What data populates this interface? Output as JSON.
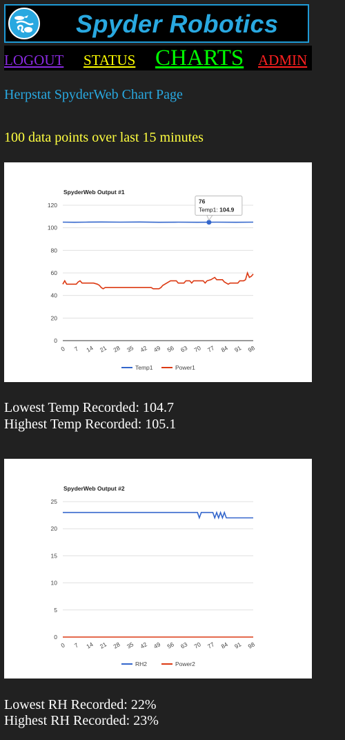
{
  "header": {
    "title": "Spyder Robotics",
    "logo_icon": "reptile-logo-icon"
  },
  "nav": {
    "logout": "LOGOUT",
    "status": "STATUS",
    "charts": "CHARTS",
    "admin": "ADMIN"
  },
  "page": {
    "title": "Herpstat SpyderWeb Chart Page",
    "subtitle": "100 data points over last 15 minutes"
  },
  "stats1": {
    "lowest": "Lowest Temp Recorded: 104.7",
    "highest": "Highest Temp Recorded: 105.1"
  },
  "stats2": {
    "lowest": "Lowest RH Recorded: 22%",
    "highest": "Highest RH Recorded: 23%"
  },
  "chart_data": [
    {
      "type": "line",
      "title": "SpyderWeb Output #1",
      "xlabel": "",
      "ylabel": "",
      "x_ticks": [
        0,
        7,
        14,
        21,
        28,
        35,
        42,
        49,
        56,
        63,
        70,
        77,
        84,
        91,
        98
      ],
      "y_ticks": [
        0,
        20,
        40,
        60,
        80,
        100,
        120
      ],
      "xlim": [
        0,
        99
      ],
      "ylim": [
        0,
        120
      ],
      "grid": true,
      "legend": "bottom",
      "tooltip": {
        "x": 76,
        "series": "Temp1",
        "value": 104.9,
        "x_label": "76",
        "series_label": "Temp1: ",
        "value_label": "104.9"
      },
      "series": [
        {
          "name": "Temp1",
          "color": "#3366cc",
          "points": [
            [
              0,
              105
            ],
            [
              6,
              104.9
            ],
            [
              12,
              105
            ],
            [
              20,
              105.1
            ],
            [
              30,
              105
            ],
            [
              40,
              105.1
            ],
            [
              50,
              104.9
            ],
            [
              60,
              105
            ],
            [
              70,
              104.9
            ],
            [
              80,
              105
            ],
            [
              90,
              104.9
            ],
            [
              99,
              105
            ]
          ]
        },
        {
          "name": "Power1",
          "color": "#dc3912",
          "points": [
            [
              0,
              50
            ],
            [
              1,
              53
            ],
            [
              2,
              50
            ],
            [
              7,
              50
            ],
            [
              8,
              52
            ],
            [
              9,
              53
            ],
            [
              10,
              51
            ],
            [
              16,
              51
            ],
            [
              18,
              50
            ],
            [
              19,
              49
            ],
            [
              20,
              47
            ],
            [
              21,
              46
            ],
            [
              22,
              47
            ],
            [
              46,
              47
            ],
            [
              47,
              46
            ],
            [
              50,
              46
            ],
            [
              51,
              47
            ],
            [
              52,
              49
            ],
            [
              56,
              53
            ],
            [
              59,
              53
            ],
            [
              60,
              51
            ],
            [
              63,
              51
            ],
            [
              64,
              53
            ],
            [
              66,
              53
            ],
            [
              67,
              51
            ],
            [
              68,
              53
            ],
            [
              73,
              53
            ],
            [
              74,
              51
            ],
            [
              75,
              53
            ],
            [
              77,
              54
            ],
            [
              79,
              56
            ],
            [
              80,
              54
            ],
            [
              83,
              54
            ],
            [
              84,
              52
            ],
            [
              85,
              51
            ],
            [
              86,
              50
            ],
            [
              87,
              51
            ],
            [
              91,
              51
            ],
            [
              92,
              53
            ],
            [
              94,
              53
            ],
            [
              95,
              54
            ],
            [
              96,
              60
            ],
            [
              97,
              56
            ],
            [
              98,
              57
            ],
            [
              99,
              59
            ]
          ]
        }
      ]
    },
    {
      "type": "line",
      "title": "SpyderWeb Output #2",
      "xlabel": "",
      "ylabel": "",
      "x_ticks": [
        0,
        7,
        14,
        21,
        28,
        35,
        42,
        49,
        56,
        63,
        70,
        77,
        84,
        91,
        98
      ],
      "y_ticks": [
        0,
        5,
        10,
        15,
        20,
        25
      ],
      "xlim": [
        0,
        99
      ],
      "ylim": [
        0,
        25
      ],
      "grid": true,
      "legend": "bottom",
      "series": [
        {
          "name": "RH2",
          "color": "#3366cc",
          "points": [
            [
              0,
              23
            ],
            [
              70,
              23
            ],
            [
              71,
              22
            ],
            [
              72,
              23
            ],
            [
              78,
              23
            ],
            [
              79,
              22
            ],
            [
              80,
              23
            ],
            [
              81,
              22
            ],
            [
              82,
              23
            ],
            [
              83,
              22
            ],
            [
              84,
              23
            ],
            [
              85,
              22
            ],
            [
              99,
              22
            ]
          ]
        },
        {
          "name": "Power2",
          "color": "#dc3912",
          "points": [
            [
              0,
              0
            ],
            [
              99,
              0
            ]
          ]
        }
      ]
    }
  ]
}
